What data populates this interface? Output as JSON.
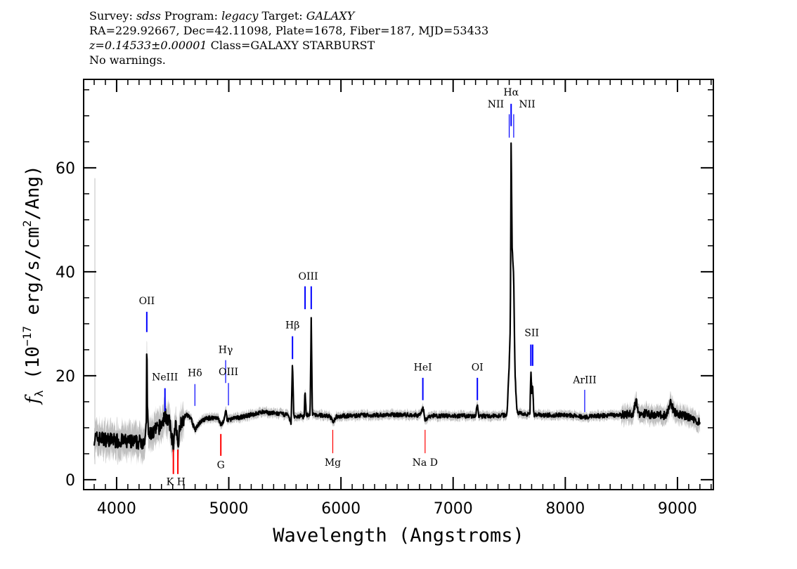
{
  "header": {
    "line1": {
      "survey_label": "Survey:",
      "survey": "sdss",
      "program_label": "Program:",
      "program": "legacy",
      "target_label": "Target:",
      "target": "GALAXY"
    },
    "line2": "RA=229.92667, Dec=42.11098, Plate=1678, Fiber=187, MJD=53433",
    "line3": {
      "redshift": "z=0.14533±0.00001",
      "class": "Class=GALAXY STARBURST"
    },
    "line4": "No warnings."
  },
  "chart_data": {
    "type": "line",
    "xlabel": "Wavelength (Angstroms)",
    "ylabel": "f_λ (10^-17 erg/s/cm^2/Ang)",
    "ylabel_parts": {
      "f": "f",
      "sub": "λ",
      "a": " (10",
      "exp": "−17",
      "b": " erg/s/cm",
      "exp2": "2",
      "c": "/Ang)"
    },
    "xlim": [
      3706,
      9320
    ],
    "ylim": [
      -1.9,
      77
    ],
    "xticks": [
      4000,
      5000,
      6000,
      7000,
      8000,
      9000
    ],
    "xtick_labels": [
      "4000",
      "5000",
      "6000",
      "7000",
      "8000",
      "9000"
    ],
    "yticks": [
      0,
      20,
      40,
      60
    ],
    "ytick_labels": [
      "0",
      "20",
      "40",
      "60"
    ],
    "grid": false,
    "colors": {
      "spectrum": "#000000",
      "error": "#c0c0c0",
      "emission": "#0000ff",
      "absorption": "#ff0000"
    },
    "spectrum": [
      [
        3800,
        8
      ],
      [
        3900,
        7.8
      ],
      [
        4000,
        7.5
      ],
      [
        4100,
        7.3
      ],
      [
        4200,
        7.2
      ],
      [
        4258,
        7.6
      ],
      [
        4265,
        12
      ],
      [
        4269,
        27
      ],
      [
        4274,
        15
      ],
      [
        4282,
        8.5
      ],
      [
        4350,
        9.5
      ],
      [
        4400,
        10.5
      ],
      [
        4431,
        12.5
      ],
      [
        4470,
        11
      ],
      [
        4506,
        6.5
      ],
      [
        4525,
        10.5
      ],
      [
        4546,
        7
      ],
      [
        4570,
        11
      ],
      [
        4620,
        12.5
      ],
      [
        4660,
        12
      ],
      [
        4698,
        9.5
      ],
      [
        4740,
        11
      ],
      [
        4800,
        11.8
      ],
      [
        4900,
        12
      ],
      [
        4929,
        10.5
      ],
      [
        4960,
        11.5
      ],
      [
        4972,
        13.5
      ],
      [
        4985,
        11.5
      ],
      [
        5100,
        12
      ],
      [
        5200,
        12.5
      ],
      [
        5300,
        13
      ],
      [
        5400,
        12.8
      ],
      [
        5520,
        12.5
      ],
      [
        5555,
        11
      ],
      [
        5568,
        22.5
      ],
      [
        5580,
        12
      ],
      [
        5640,
        12.3
      ],
      [
        5672,
        12
      ],
      [
        5680,
        17.5
      ],
      [
        5690,
        12.5
      ],
      [
        5725,
        12.5
      ],
      [
        5735,
        31
      ],
      [
        5745,
        12.5
      ],
      [
        5800,
        12.4
      ],
      [
        5900,
        12.3
      ],
      [
        5927,
        11
      ],
      [
        5960,
        12.2
      ],
      [
        6200,
        12.4
      ],
      [
        6500,
        12.5
      ],
      [
        6700,
        12.4
      ],
      [
        6730,
        14
      ],
      [
        6750,
        11.5
      ],
      [
        6800,
        12.3
      ],
      [
        7000,
        12.3
      ],
      [
        7200,
        12.2
      ],
      [
        7216,
        14.5
      ],
      [
        7230,
        12.2
      ],
      [
        7400,
        12.3
      ],
      [
        7480,
        12.5
      ],
      [
        7500,
        22
      ],
      [
        7510,
        30
      ],
      [
        7517,
        65
      ],
      [
        7526,
        45
      ],
      [
        7540,
        39
      ],
      [
        7552,
        20
      ],
      [
        7570,
        13
      ],
      [
        7650,
        12.5
      ],
      [
        7685,
        13
      ],
      [
        7693,
        21
      ],
      [
        7700,
        17
      ],
      [
        7709,
        18
      ],
      [
        7720,
        12.5
      ],
      [
        7800,
        12.4
      ],
      [
        8000,
        12.5
      ],
      [
        8173,
        12
      ],
      [
        8300,
        12.3
      ],
      [
        8500,
        12.5
      ],
      [
        8600,
        12.7
      ],
      [
        8630,
        15
      ],
      [
        8660,
        12.8
      ],
      [
        8800,
        12.5
      ],
      [
        8900,
        12.3
      ],
      [
        8940,
        15
      ],
      [
        8970,
        13
      ],
      [
        9100,
        12
      ],
      [
        9200,
        11
      ]
    ],
    "lines": [
      {
        "label": "OII",
        "wave": 4269,
        "kind": "emission",
        "tick": [
          28.4,
          32.3
        ],
        "label_y": 33.8
      },
      {
        "label": "NeIII",
        "wave": 4431,
        "kind": "emission",
        "tick": [
          13.2,
          17.6
        ],
        "label_y": 19.1
      },
      {
        "label": "Hδ",
        "wave": 4698,
        "kind": "emission",
        "tick": [
          14.2,
          18.4
        ],
        "label_y": 19.9
      },
      {
        "label": "Hγ",
        "wave": 4972,
        "kind": "emission",
        "tick": [
          18.6,
          23.0
        ],
        "label_y": 24.4
      },
      {
        "label": "OIII",
        "wave": 4997,
        "kind": "emission",
        "tick": [
          14.3,
          18.6
        ],
        "label_y": 20.1
      },
      {
        "label": "Hβ",
        "wave": 5568,
        "kind": "emission",
        "tick": [
          23.2,
          27.6
        ],
        "label_y": 29.1
      },
      {
        "label": "",
        "wave": 5680,
        "kind": "emission",
        "tick": [
          32.8,
          37.2
        ],
        "label_y": 38.5
      },
      {
        "label": "OIII",
        "wave": 5735,
        "kind": "emission",
        "tick": [
          32.8,
          37.2
        ],
        "label_y": 38.5,
        "label_wave": 5708
      },
      {
        "label": "HeI",
        "wave": 6730,
        "kind": "emission",
        "tick": [
          15.3,
          19.6
        ],
        "label_y": 21.0
      },
      {
        "label": "OI",
        "wave": 7216,
        "kind": "emission",
        "tick": [
          15.3,
          19.6
        ],
        "label_y": 21.0
      },
      {
        "label": "NII",
        "wave": 7500,
        "kind": "emission",
        "tick": [
          65.8,
          70.3
        ],
        "label_y": 71.6,
        "label_wave": 7380
      },
      {
        "label": "Hα",
        "wave": 7517,
        "kind": "emission",
        "tick": [
          68.0,
          72.3
        ],
        "label_y": 73.9
      },
      {
        "label": "NII",
        "wave": 7540,
        "kind": "emission",
        "tick": [
          65.8,
          70.3
        ],
        "label_y": 71.6,
        "label_wave": 7660
      },
      {
        "label": "",
        "wave": 7693,
        "kind": "emission",
        "tick": [
          21.9,
          26.0
        ],
        "label_y": 27.6
      },
      {
        "label": "SII",
        "wave": 7709,
        "kind": "emission",
        "tick": [
          21.9,
          26.0
        ],
        "label_y": 27.6,
        "label_wave": 7701
      },
      {
        "label": "ArIII",
        "wave": 8173,
        "kind": "emission",
        "tick": [
          13.0,
          17.3
        ],
        "label_y": 18.6
      },
      {
        "label": "K",
        "wave": 4506,
        "kind": "absorption",
        "tick": [
          1.1,
          5.8
        ],
        "label_y": -1.0,
        "label_wave": 4476
      },
      {
        "label": "H",
        "wave": 4546,
        "kind": "absorption",
        "tick": [
          1.1,
          5.8
        ],
        "label_y": -1.0,
        "label_wave": 4576
      },
      {
        "label": "G",
        "wave": 4929,
        "kind": "absorption",
        "tick": [
          4.6,
          8.8
        ],
        "label_y": 2.2
      },
      {
        "label": "Mg",
        "wave": 5927,
        "kind": "absorption",
        "tick": [
          5.1,
          9.6
        ],
        "label_y": 2.7
      },
      {
        "label": "Na D",
        "wave": 6750,
        "kind": "absorption",
        "tick": [
          5.1,
          9.6
        ],
        "label_y": 2.7
      }
    ]
  }
}
